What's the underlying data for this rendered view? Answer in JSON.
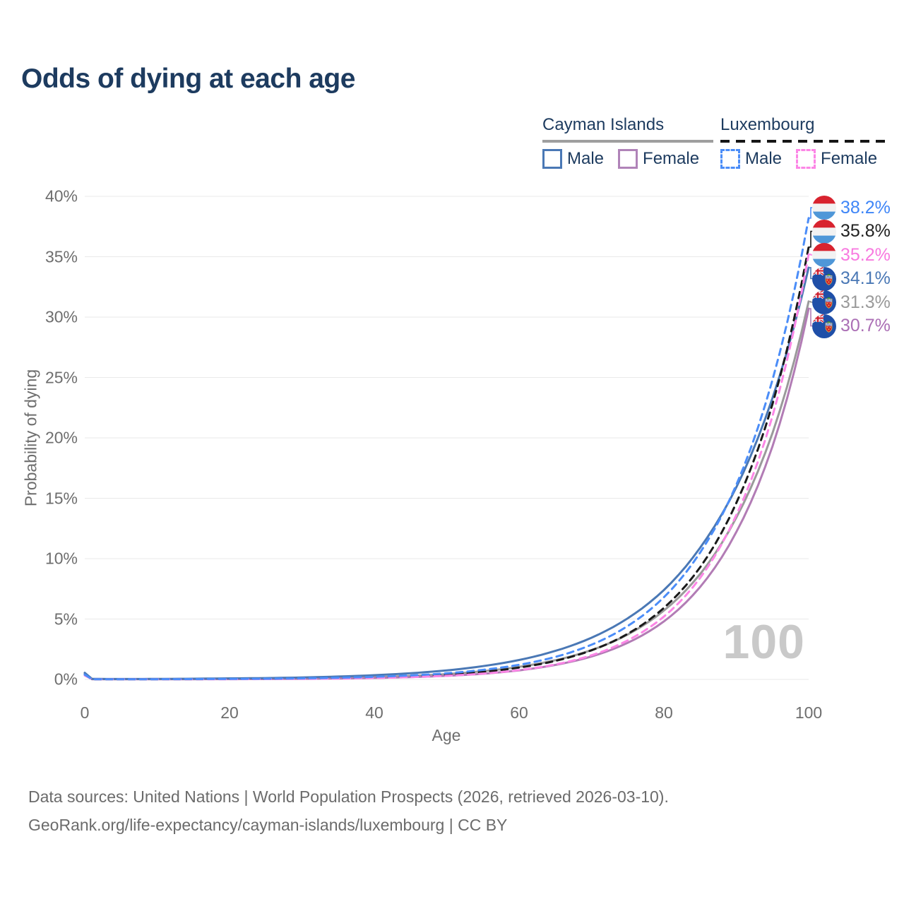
{
  "title": "Odds of dying at each age",
  "watermark_age": "100",
  "legend": {
    "groups": [
      {
        "name": "Cayman Islands",
        "line_style": "solid",
        "underline_color": "#9e9e9e",
        "items": [
          {
            "label": "Male",
            "color": "#4a78b5"
          },
          {
            "label": "Female",
            "color": "#b083b8"
          }
        ]
      },
      {
        "name": "Luxembourg",
        "line_style": "dashed",
        "underline_color": "#161616",
        "items": [
          {
            "label": "Male",
            "color": "#4b8df8"
          },
          {
            "label": "Female",
            "color": "#fc86e6"
          }
        ]
      }
    ]
  },
  "chart_data": {
    "type": "line",
    "title": "Odds of dying at each age",
    "xlabel": "Age",
    "ylabel": "Probability of dying",
    "xlim": [
      0,
      100
    ],
    "ylim": [
      0,
      40
    ],
    "grid": "horizontal",
    "x_ticks": [
      "0",
      "20",
      "40",
      "60",
      "80",
      "100"
    ],
    "y_ticks": [
      "0%",
      "5%",
      "10%",
      "15%",
      "20%",
      "25%",
      "30%",
      "35%",
      "40%"
    ],
    "ages": [
      0,
      1,
      5,
      10,
      15,
      20,
      25,
      30,
      35,
      40,
      45,
      50,
      55,
      60,
      65,
      70,
      75,
      80,
      85,
      90,
      95,
      100
    ],
    "series": [
      {
        "id": "lux-male",
        "name": "Luxembourg Male",
        "country": "Luxembourg",
        "sex": "Male",
        "style": "dashed",
        "color": "#4b8df8",
        "label_color": "#3f86f7",
        "flag": "lu",
        "end_label": "38.2%",
        "values": [
          0.4,
          0.02,
          0.02,
          0.02,
          0.03,
          0.04,
          0.06,
          0.09,
          0.14,
          0.22,
          0.33,
          0.51,
          0.79,
          1.21,
          1.86,
          2.87,
          4.42,
          6.8,
          10.5,
          16.1,
          24.8,
          38.2
        ]
      },
      {
        "id": "lux-both",
        "name": "Luxembourg Both sexes",
        "country": "Luxembourg",
        "sex": "Both",
        "style": "dashed",
        "color": "#1a1a1a",
        "label_color": "#222222",
        "flag": "lu",
        "end_label": "35.8%",
        "values": [
          0.38,
          0.02,
          0.015,
          0.02,
          0.025,
          0.03,
          0.045,
          0.07,
          0.1,
          0.16,
          0.26,
          0.4,
          0.62,
          0.98,
          1.53,
          2.41,
          3.77,
          5.92,
          9.28,
          14.6,
          22.8,
          35.8
        ]
      },
      {
        "id": "lux-female",
        "name": "Luxembourg Female",
        "country": "Luxembourg",
        "sex": "Female",
        "style": "dashed",
        "color": "#fc86e6",
        "label_color": "#f87ae0",
        "flag": "lu",
        "end_label": "35.2%",
        "values": [
          0.33,
          0.015,
          0.01,
          0.012,
          0.015,
          0.02,
          0.03,
          0.045,
          0.07,
          0.12,
          0.19,
          0.3,
          0.48,
          0.77,
          1.24,
          2.0,
          3.23,
          5.2,
          8.4,
          13.6,
          21.8,
          35.2
        ]
      },
      {
        "id": "cayman-male",
        "name": "Cayman Islands Male",
        "country": "Cayman Islands",
        "sex": "Male",
        "style": "solid",
        "color": "#4a78b5",
        "label_color": "#4a78b5",
        "flag": "ky",
        "end_label": "34.1%",
        "values": [
          0.55,
          0.04,
          0.035,
          0.04,
          0.06,
          0.085,
          0.11,
          0.16,
          0.24,
          0.35,
          0.51,
          0.75,
          1.1,
          1.61,
          2.36,
          3.45,
          5.06,
          7.4,
          10.9,
          15.9,
          23.3,
          34.1
        ]
      },
      {
        "id": "cayman-both",
        "name": "Cayman Islands Both sexes",
        "country": "Cayman Islands",
        "sex": "Both",
        "style": "solid",
        "color": "#9a9a9a",
        "label_color": "#9a9a9a",
        "flag": "ky",
        "end_label": "31.3%",
        "values": [
          0.48,
          0.03,
          0.025,
          0.03,
          0.04,
          0.05,
          0.06,
          0.09,
          0.13,
          0.19,
          0.29,
          0.44,
          0.68,
          1.04,
          1.59,
          2.43,
          3.72,
          5.7,
          8.72,
          13.4,
          20.4,
          31.3
        ]
      },
      {
        "id": "cayman-female",
        "name": "Cayman Islands Female",
        "country": "Cayman Islands",
        "sex": "Female",
        "style": "solid",
        "color": "#b27cb5",
        "label_color": "#ab6fb5",
        "flag": "ky",
        "end_label": "30.7%",
        "values": [
          0.42,
          0.02,
          0.012,
          0.015,
          0.02,
          0.025,
          0.032,
          0.05,
          0.075,
          0.12,
          0.19,
          0.3,
          0.47,
          0.75,
          1.2,
          1.9,
          3.03,
          4.8,
          7.65,
          12.2,
          19.3,
          30.7
        ]
      }
    ]
  },
  "flag_colors": {
    "luxembourg": {
      "red": "#d8232f",
      "white": "#f2f2f2",
      "blue": "#4f97d8"
    },
    "cayman": {
      "field": "#1f4fa8",
      "red": "#cf2030",
      "white": "#ffffff",
      "gold": "#e8c840",
      "green": "#3c8a3c"
    }
  },
  "footer": {
    "line1": "Data sources: United Nations | World Population Prospects (2026, retrieved 2026-03-10).",
    "line2": "GeoRank.org/life-expectancy/cayman-islands/luxembourg | CC BY"
  }
}
